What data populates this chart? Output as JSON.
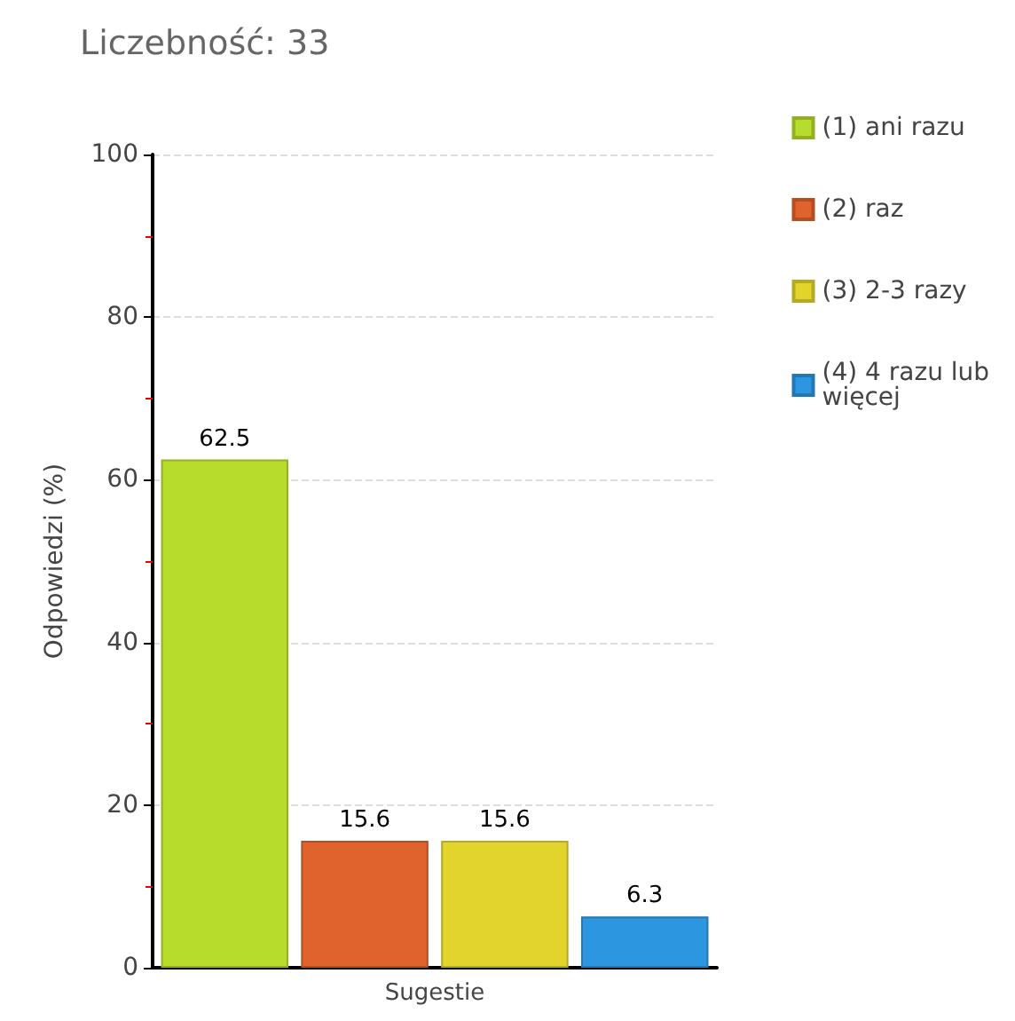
{
  "chart_data": {
    "type": "bar",
    "title": "Liczebność: 33",
    "ylabel": "Odpowiedzi (%)",
    "categories": [
      "Sugestie"
    ],
    "series": [
      {
        "name": "(1) ani razu",
        "color": "#b8dc2c",
        "values": [
          62.5
        ]
      },
      {
        "name": "(2) raz",
        "color": "#e0622c",
        "values": [
          15.6
        ]
      },
      {
        "name": "(3) 2-3 razy",
        "color": "#e2d42c",
        "values": [
          15.6
        ]
      },
      {
        "name": "(4) 4 razu lub więcej",
        "color": "#2c96e0",
        "values": [
          6.3
        ]
      }
    ],
    "ylim": [
      0,
      100
    ],
    "yticks": [
      0,
      20,
      40,
      60,
      80,
      100
    ],
    "grid": "y",
    "legend": "right",
    "data_labels": true
  }
}
